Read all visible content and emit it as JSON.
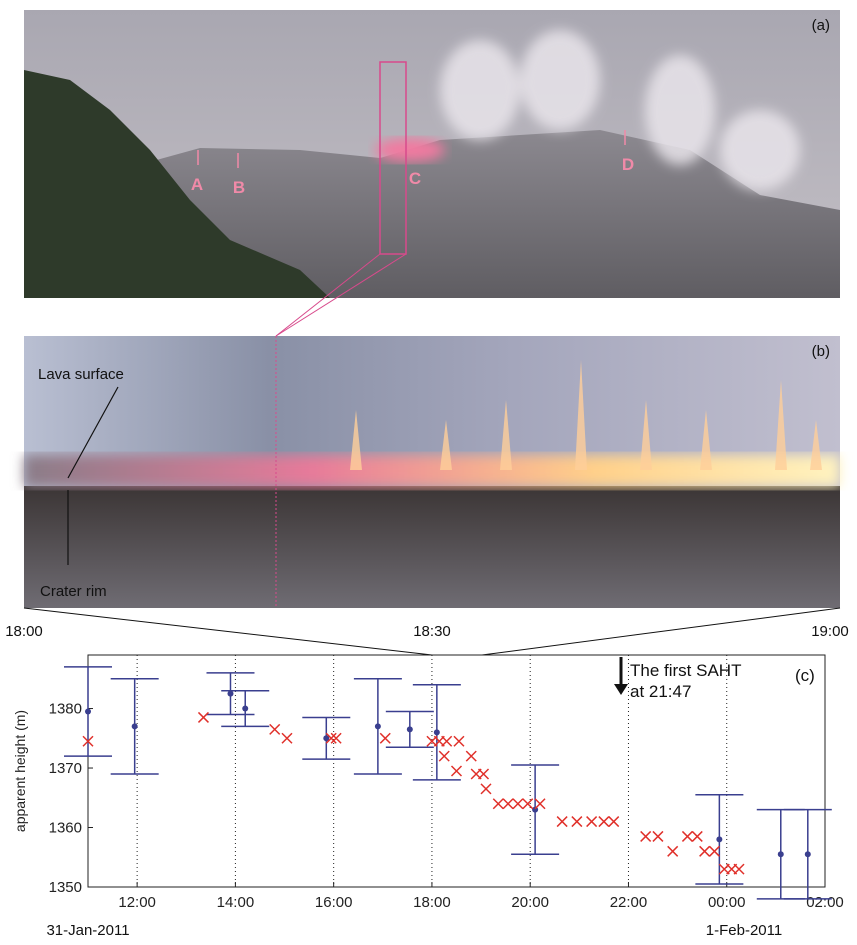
{
  "panel_a": {
    "label": "(a)",
    "markers": [
      "A",
      "B",
      "C",
      "D"
    ]
  },
  "panel_b": {
    "label": "(b)",
    "lava_surface": "Lava surface",
    "crater_rim": "Crater rim",
    "times": [
      "18:00",
      "18:30",
      "19:00"
    ]
  },
  "chart_data": {
    "type": "scatter",
    "panel_label": "(c)",
    "ylabel": "apparent height (m)",
    "annotation": "The first SAHT at 21:47",
    "date_labels": [
      "31-Jan-2011",
      "1-Feb-2011"
    ],
    "xlim": [
      11,
      26
    ],
    "ylim": [
      1350,
      1389
    ],
    "xticks": [
      {
        "value": 12,
        "label": "12:00"
      },
      {
        "value": 14,
        "label": "14:00"
      },
      {
        "value": 16,
        "label": "16:00"
      },
      {
        "value": 18,
        "label": "18:00"
      },
      {
        "value": 20,
        "label": "20:00"
      },
      {
        "value": 22,
        "label": "22:00"
      },
      {
        "value": 24,
        "label": "00:00"
      },
      {
        "value": 26,
        "label": "02:00"
      }
    ],
    "yticks": [
      1350,
      1360,
      1370,
      1380
    ],
    "grid": true,
    "series": [
      {
        "marker": "dot",
        "color": "#3a3f8f",
        "x": [
          11.0,
          11.95,
          13.9,
          14.2,
          15.85,
          16.9,
          17.55,
          18.1,
          20.1,
          23.85,
          25.1,
          25.65
        ],
        "values": [
          1379.5,
          1377,
          1382.5,
          1380,
          1375,
          1377,
          1376.5,
          1376,
          1363,
          1358,
          1355.5,
          1355.5
        ],
        "errors": [
          7.5,
          8,
          3.5,
          3,
          3.5,
          8,
          3,
          8,
          7.5,
          7.5,
          7.5,
          7.5
        ]
      },
      {
        "marker": "cross",
        "color": "#e0302a",
        "x": [
          11.0,
          13.35,
          14.8,
          15.05,
          15.95,
          16.05,
          17.05,
          18.0,
          18.15,
          18.3,
          18.55,
          18.25,
          18.5,
          18.8,
          18.9,
          19.05,
          19.1,
          19.35,
          19.55,
          19.75,
          19.95,
          20.2,
          20.65,
          20.95,
          21.25,
          21.5,
          21.7,
          22.35,
          22.6,
          22.9,
          23.2,
          23.4,
          23.55,
          23.75,
          23.95,
          24.1,
          24.25
        ],
        "values": [
          1374.5,
          1378.5,
          1376.5,
          1375,
          1375,
          1375,
          1375,
          1374.5,
          1374.5,
          1374.5,
          1374.5,
          1372,
          1369.5,
          1372,
          1369,
          1369,
          1366.5,
          1364,
          1364,
          1364,
          1364,
          1364,
          1361,
          1361,
          1361,
          1361,
          1361,
          1358.5,
          1358.5,
          1356,
          1358.5,
          1358.5,
          1356,
          1356,
          1353,
          1353,
          1353
        ]
      }
    ]
  }
}
